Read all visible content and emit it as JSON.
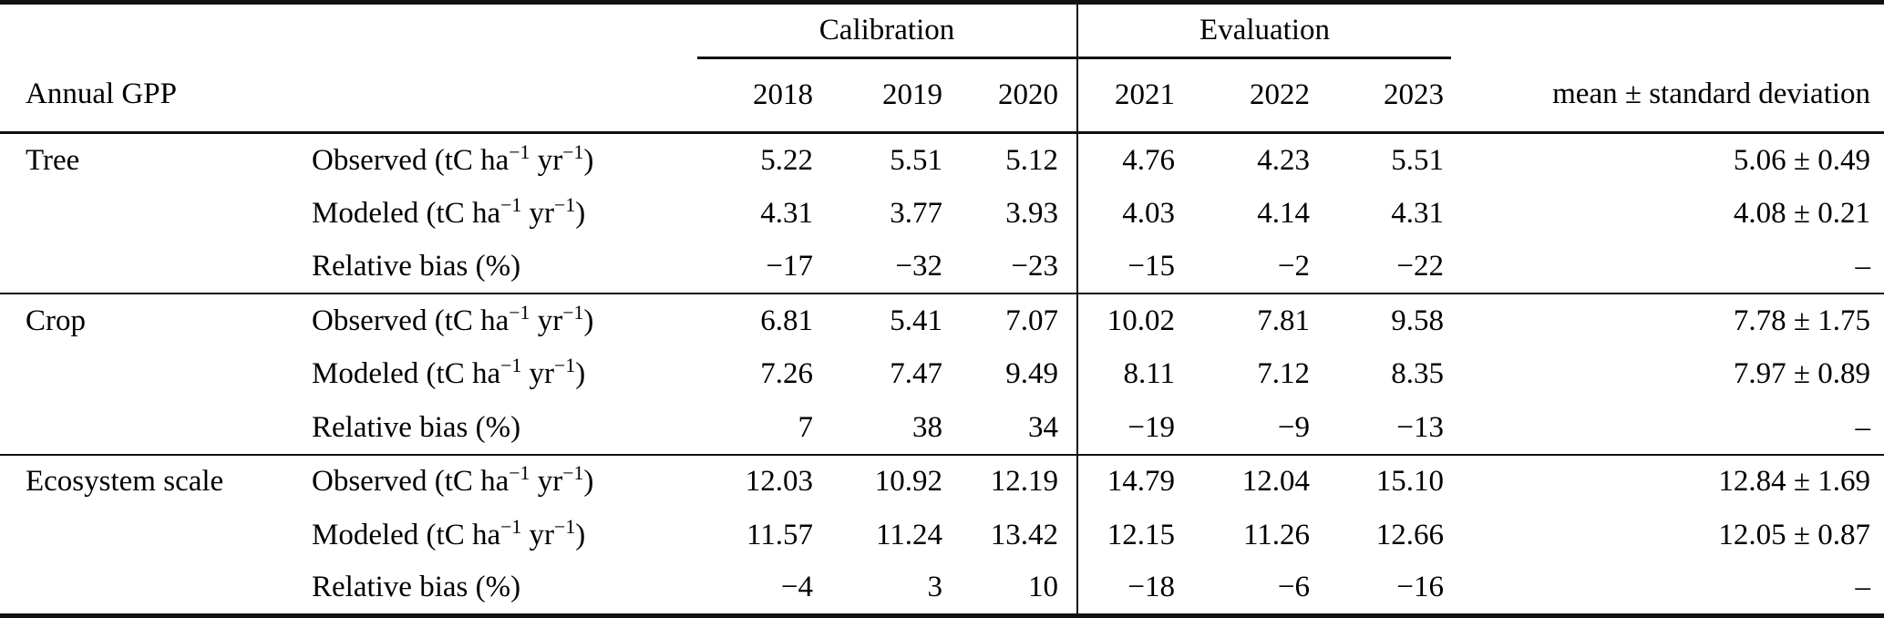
{
  "colors": {
    "text": "#000000",
    "rule": "#111111",
    "background": "#ffffff"
  },
  "table": {
    "row_label_header": "Annual GPP",
    "mean_header": "mean ± standard deviation",
    "col_groups": [
      {
        "label": "Calibration",
        "years": [
          "2018",
          "2019",
          "2020"
        ]
      },
      {
        "label": "Evaluation",
        "years": [
          "2021",
          "2022",
          "2023"
        ]
      }
    ],
    "sections": [
      {
        "name": "Tree",
        "rows": [
          {
            "metric": "Observed (tC ha^−1^ yr^−1^)",
            "values": [
              "5.22",
              "5.51",
              "5.12",
              "4.76",
              "4.23",
              "5.51"
            ],
            "mean": "5.06 ± 0.49"
          },
          {
            "metric": "Modeled (tC ha^−1^ yr^−1^)",
            "values": [
              "4.31",
              "3.77",
              "3.93",
              "4.03",
              "4.14",
              "4.31"
            ],
            "mean": "4.08 ± 0.21"
          },
          {
            "metric": "Relative bias (%)",
            "values": [
              "−17",
              "−32",
              "−23",
              "−15",
              "−2",
              "−22"
            ],
            "mean": "–"
          }
        ]
      },
      {
        "name": "Crop",
        "rows": [
          {
            "metric": "Observed (tC ha^−1^ yr^−1^)",
            "values": [
              "6.81",
              "5.41",
              "7.07",
              "10.02",
              "7.81",
              "9.58"
            ],
            "mean": "7.78 ± 1.75"
          },
          {
            "metric": "Modeled (tC ha^−1^ yr^−1^)",
            "values": [
              "7.26",
              "7.47",
              "9.49",
              "8.11",
              "7.12",
              "8.35"
            ],
            "mean": "7.97 ± 0.89"
          },
          {
            "metric": "Relative bias (%)",
            "values": [
              "7",
              "38",
              "34",
              "−19",
              "−9",
              "−13"
            ],
            "mean": "–"
          }
        ]
      },
      {
        "name": "Ecosystem scale",
        "rows": [
          {
            "metric": "Observed (tC ha^−1^ yr^−1^)",
            "values": [
              "12.03",
              "10.92",
              "12.19",
              "14.79",
              "12.04",
              "15.10"
            ],
            "mean": "12.84 ± 1.69"
          },
          {
            "metric": "Modeled (tC ha^−1^ yr^−1^)",
            "values": [
              "11.57",
              "11.24",
              "13.42",
              "12.15",
              "11.26",
              "12.66"
            ],
            "mean": "12.05 ± 0.87"
          },
          {
            "metric": "Relative bias (%)",
            "values": [
              "−4",
              "3",
              "10",
              "−18",
              "−6",
              "−16"
            ],
            "mean": "–"
          }
        ]
      }
    ]
  }
}
